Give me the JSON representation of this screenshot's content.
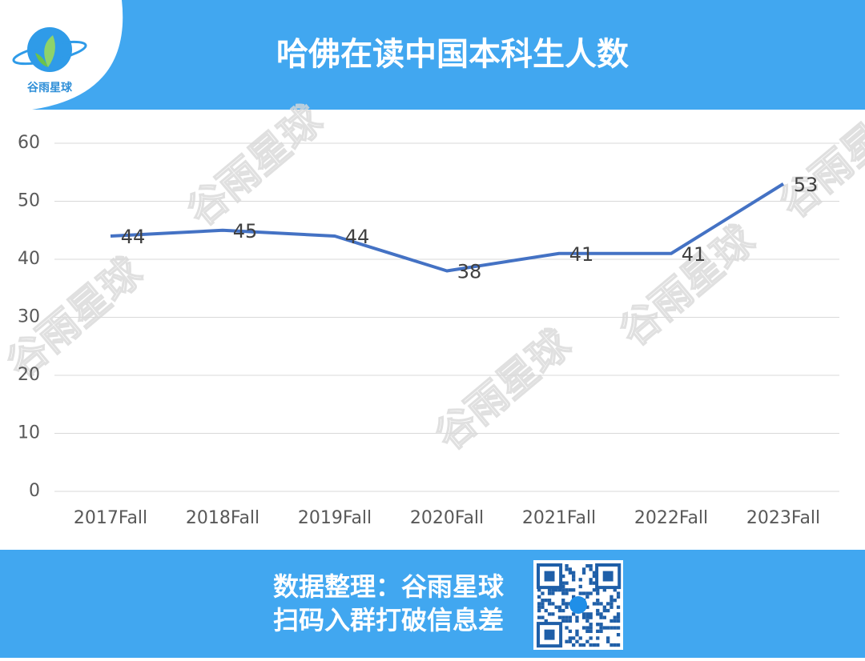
{
  "header": {
    "title": "哈佛在读中国本科生人数"
  },
  "logo": {
    "text": "谷雨星球"
  },
  "watermark": "谷雨星球",
  "chart_data": {
    "type": "line",
    "categories": [
      "2017Fall",
      "2018Fall",
      "2019Fall",
      "2020Fall",
      "2021Fall",
      "2022Fall",
      "2023Fall"
    ],
    "values": [
      44,
      45,
      44,
      38,
      41,
      41,
      53
    ],
    "color": "#4472c4",
    "ylim": [
      0,
      60
    ],
    "yticks": [
      0,
      10,
      20,
      30,
      40,
      50,
      60
    ],
    "grid": true
  },
  "footer": {
    "lines": [
      "数据整理：谷雨星球",
      "扫码入群打破信息差"
    ]
  }
}
